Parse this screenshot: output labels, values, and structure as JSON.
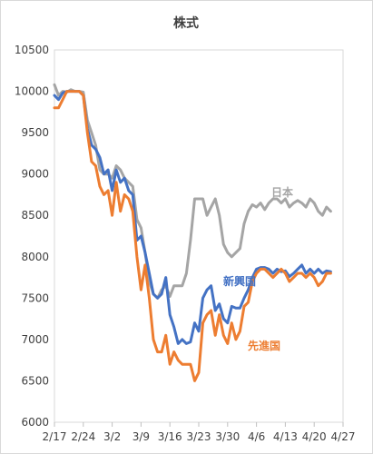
{
  "chart_data": {
    "type": "line",
    "title": "株式",
    "xlabel": "",
    "ylabel": "",
    "ylim": [
      6000,
      10500
    ],
    "yticks": [
      6000,
      6500,
      7000,
      7500,
      8000,
      8500,
      9000,
      9500,
      10000,
      10500
    ],
    "x_tick_labels": [
      "2/17",
      "2/24",
      "3/2",
      "3/9",
      "3/16",
      "3/23",
      "3/30",
      "4/6",
      "4/13",
      "4/20",
      "4/27"
    ],
    "x_tick_index": [
      0,
      7,
      14,
      21,
      28,
      35,
      42,
      49,
      56,
      63,
      70
    ],
    "x_range": [
      0,
      70
    ],
    "grid": false,
    "legend": "inline labels next to lines",
    "series": [
      {
        "name": "日本",
        "color": "#a5a5a5",
        "points": [
          [
            0,
            10080
          ],
          [
            1,
            9950
          ],
          [
            2,
            10000
          ],
          [
            3,
            9990
          ],
          [
            4,
            10020
          ],
          [
            5,
            10000
          ],
          [
            6,
            10000
          ],
          [
            7,
            9990
          ],
          [
            8,
            9650
          ],
          [
            9,
            9500
          ],
          [
            10,
            9350
          ],
          [
            11,
            9050
          ],
          [
            12,
            9000
          ],
          [
            13,
            9000
          ],
          [
            14,
            8950
          ],
          [
            15,
            9100
          ],
          [
            16,
            9050
          ],
          [
            17,
            8950
          ],
          [
            18,
            8900
          ],
          [
            19,
            8850
          ],
          [
            20,
            8450
          ],
          [
            21,
            8350
          ],
          [
            22,
            8050
          ],
          [
            23,
            7700
          ],
          [
            24,
            7550
          ],
          [
            25,
            7500
          ],
          [
            26,
            7600
          ],
          [
            27,
            7650
          ],
          [
            28,
            7520
          ],
          [
            29,
            7650
          ],
          [
            30,
            7650
          ],
          [
            31,
            7650
          ],
          [
            32,
            7800
          ],
          [
            33,
            8200
          ],
          [
            34,
            8700
          ],
          [
            35,
            8700
          ],
          [
            36,
            8700
          ],
          [
            37,
            8500
          ],
          [
            38,
            8600
          ],
          [
            39,
            8700
          ],
          [
            40,
            8500
          ],
          [
            41,
            8150
          ],
          [
            42,
            8050
          ],
          [
            43,
            8000
          ],
          [
            44,
            8050
          ],
          [
            45,
            8100
          ],
          [
            46,
            8400
          ],
          [
            47,
            8550
          ],
          [
            48,
            8630
          ],
          [
            49,
            8600
          ],
          [
            50,
            8650
          ],
          [
            51,
            8570
          ],
          [
            52,
            8650
          ],
          [
            53,
            8700
          ],
          [
            54,
            8700
          ],
          [
            55,
            8650
          ],
          [
            56,
            8700
          ],
          [
            57,
            8600
          ],
          [
            58,
            8650
          ],
          [
            59,
            8680
          ],
          [
            60,
            8650
          ],
          [
            61,
            8600
          ],
          [
            62,
            8700
          ],
          [
            63,
            8650
          ],
          [
            64,
            8550
          ],
          [
            65,
            8500
          ],
          [
            66,
            8600
          ],
          [
            67,
            8550
          ]
        ]
      },
      {
        "name": "新興国",
        "color": "#4472c4",
        "points": [
          [
            0,
            9950
          ],
          [
            1,
            9900
          ],
          [
            2,
            9980
          ],
          [
            3,
            10000
          ],
          [
            4,
            10000
          ],
          [
            5,
            10000
          ],
          [
            6,
            10000
          ],
          [
            7,
            9950
          ],
          [
            8,
            9550
          ],
          [
            9,
            9350
          ],
          [
            10,
            9300
          ],
          [
            11,
            9200
          ],
          [
            12,
            9000
          ],
          [
            13,
            9050
          ],
          [
            14,
            8800
          ],
          [
            15,
            9050
          ],
          [
            16,
            8900
          ],
          [
            17,
            8950
          ],
          [
            18,
            8800
          ],
          [
            19,
            8750
          ],
          [
            20,
            8200
          ],
          [
            21,
            8250
          ],
          [
            22,
            8050
          ],
          [
            23,
            7800
          ],
          [
            24,
            7550
          ],
          [
            25,
            7500
          ],
          [
            26,
            7550
          ],
          [
            27,
            7750
          ],
          [
            28,
            7300
          ],
          [
            29,
            7150
          ],
          [
            30,
            6950
          ],
          [
            31,
            7000
          ],
          [
            32,
            6950
          ],
          [
            33,
            6970
          ],
          [
            34,
            7200
          ],
          [
            35,
            7100
          ],
          [
            36,
            7500
          ],
          [
            37,
            7600
          ],
          [
            38,
            7650
          ],
          [
            39,
            7350
          ],
          [
            40,
            7430
          ],
          [
            41,
            7250
          ],
          [
            42,
            7200
          ],
          [
            43,
            7400
          ],
          [
            44,
            7380
          ],
          [
            45,
            7380
          ],
          [
            46,
            7500
          ],
          [
            47,
            7600
          ],
          [
            48,
            7750
          ],
          [
            49,
            7850
          ],
          [
            50,
            7870
          ],
          [
            51,
            7870
          ],
          [
            52,
            7850
          ],
          [
            53,
            7800
          ],
          [
            54,
            7850
          ],
          [
            55,
            7820
          ],
          [
            56,
            7830
          ],
          [
            57,
            7760
          ],
          [
            58,
            7800
          ],
          [
            59,
            7850
          ],
          [
            60,
            7900
          ],
          [
            61,
            7800
          ],
          [
            62,
            7850
          ],
          [
            63,
            7800
          ],
          [
            64,
            7850
          ],
          [
            65,
            7800
          ],
          [
            66,
            7830
          ],
          [
            67,
            7820
          ]
        ]
      },
      {
        "name": "先進国",
        "color": "#ed7d31",
        "points": [
          [
            0,
            9800
          ],
          [
            1,
            9800
          ],
          [
            2,
            9900
          ],
          [
            3,
            10000
          ],
          [
            4,
            10000
          ],
          [
            5,
            10000
          ],
          [
            6,
            10000
          ],
          [
            7,
            9950
          ],
          [
            8,
            9500
          ],
          [
            9,
            9150
          ],
          [
            10,
            9100
          ],
          [
            11,
            8850
          ],
          [
            12,
            8750
          ],
          [
            13,
            8800
          ],
          [
            14,
            8500
          ],
          [
            15,
            8900
          ],
          [
            16,
            8550
          ],
          [
            17,
            8750
          ],
          [
            18,
            8700
          ],
          [
            19,
            8550
          ],
          [
            20,
            8000
          ],
          [
            21,
            7600
          ],
          [
            22,
            7900
          ],
          [
            23,
            7500
          ],
          [
            24,
            7000
          ],
          [
            25,
            6850
          ],
          [
            26,
            6850
          ],
          [
            27,
            7050
          ],
          [
            28,
            6700
          ],
          [
            29,
            6850
          ],
          [
            30,
            6750
          ],
          [
            31,
            6700
          ],
          [
            32,
            6700
          ],
          [
            33,
            6700
          ],
          [
            34,
            6500
          ],
          [
            35,
            6600
          ],
          [
            36,
            7200
          ],
          [
            37,
            7300
          ],
          [
            38,
            7350
          ],
          [
            39,
            7050
          ],
          [
            40,
            7300
          ],
          [
            41,
            7050
          ],
          [
            42,
            6950
          ],
          [
            43,
            7200
          ],
          [
            44,
            7000
          ],
          [
            45,
            7100
          ],
          [
            46,
            7400
          ],
          [
            47,
            7450
          ],
          [
            48,
            7700
          ],
          [
            49,
            7800
          ],
          [
            50,
            7850
          ],
          [
            51,
            7850
          ],
          [
            52,
            7800
          ],
          [
            53,
            7750
          ],
          [
            54,
            7800
          ],
          [
            55,
            7850
          ],
          [
            56,
            7800
          ],
          [
            57,
            7700
          ],
          [
            58,
            7750
          ],
          [
            59,
            7800
          ],
          [
            60,
            7800
          ],
          [
            61,
            7750
          ],
          [
            62,
            7800
          ],
          [
            63,
            7750
          ],
          [
            64,
            7650
          ],
          [
            65,
            7700
          ],
          [
            66,
            7800
          ],
          [
            67,
            7800
          ]
        ]
      }
    ]
  }
}
